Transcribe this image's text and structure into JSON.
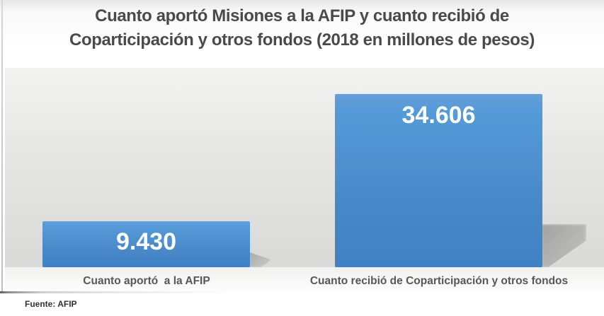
{
  "chart_data": {
    "type": "bar",
    "title": "Cuanto aportó Misiones a la AFIP y cuanto recibió de Coparticipación y otros fondos (2018 en millones de pesos)",
    "title_lines": [
      "Cuanto aportó Misiones a la AFIP y cuanto recibió de",
      "Coparticipación y otros fondos (2018 en millones de pesos)"
    ],
    "categories": [
      "Cuanto aportó  a la AFIP",
      "Cuanto recibió de Coparticipación y otros fondos"
    ],
    "values": [
      9430,
      34606
    ],
    "value_labels": [
      "9.430",
      "34.606"
    ],
    "xlabel": "",
    "ylabel": "",
    "ylim": [
      0,
      36000
    ],
    "grid": false,
    "legend": false,
    "bar_color": "#4a89c9",
    "value_label_color": "#ffffff",
    "title_color": "#4a4a4a",
    "plot_bg_top": "#f2f2f1",
    "plot_bg_bottom": "#d9d9d8"
  },
  "bars": [
    {
      "category": "Cuanto aportó  a la AFIP",
      "value": 9430,
      "value_label": "9.430"
    },
    {
      "category": "Cuanto recibió de Coparticipación y otros fondos",
      "value": 34606,
      "value_label": "34.606"
    }
  ],
  "footer": {
    "source": "Fuente: AFIP"
  }
}
